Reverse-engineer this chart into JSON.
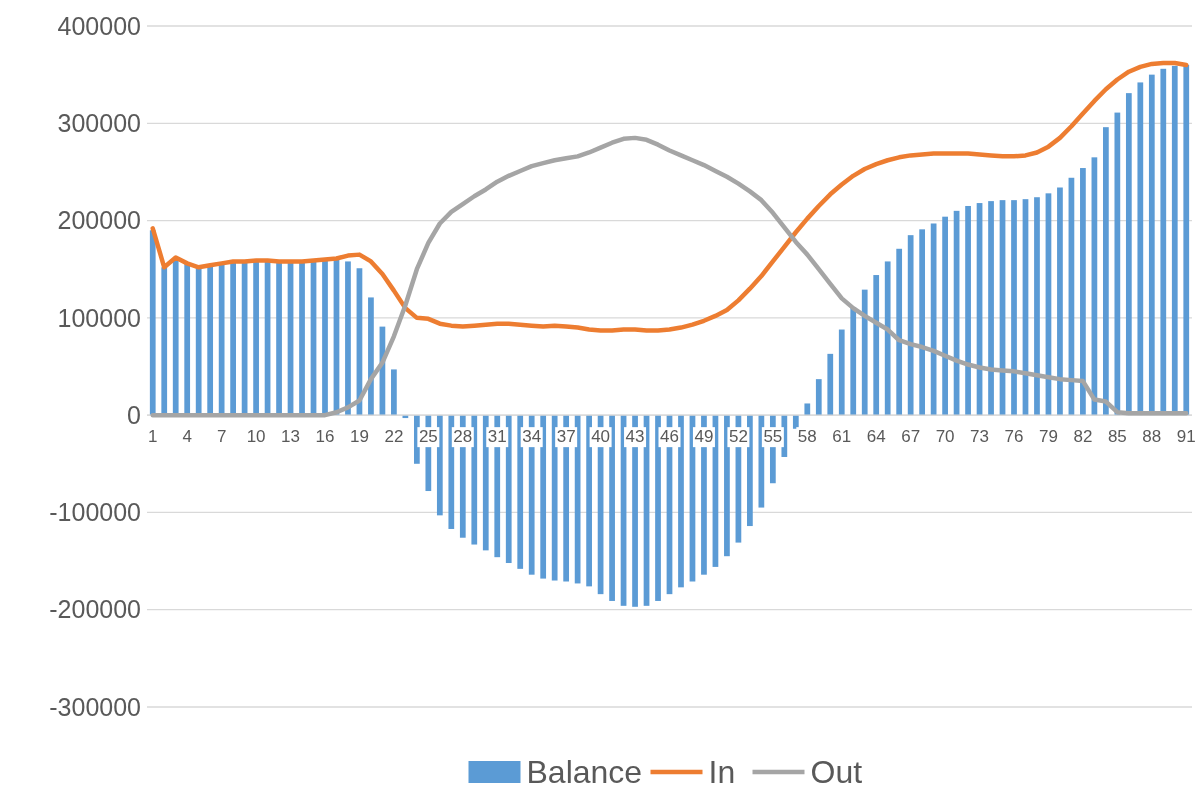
{
  "chart_data": {
    "type": "bar",
    "categories": [
      "1",
      null,
      null,
      "4",
      null,
      null,
      "7",
      null,
      null,
      "10",
      null,
      null,
      "13",
      null,
      null,
      "16",
      null,
      null,
      "19",
      null,
      null,
      "22",
      null,
      null,
      "25",
      null,
      null,
      "28",
      null,
      null,
      "31",
      null,
      null,
      "34",
      null,
      null,
      "37",
      null,
      null,
      "40",
      null,
      null,
      "43",
      null,
      null,
      "46",
      null,
      null,
      "49",
      null,
      null,
      "52",
      null,
      null,
      "55",
      null,
      null,
      "58",
      null,
      null,
      "61",
      null,
      null,
      "64",
      null,
      null,
      "67",
      null,
      null,
      "70",
      null,
      null,
      "73",
      null,
      null,
      "76",
      null,
      null,
      "79",
      null,
      null,
      "82",
      null,
      null,
      "85",
      null,
      null,
      "88",
      null,
      null,
      "91"
    ],
    "series": [
      {
        "name": "Balance",
        "color": "#5b9bd5",
        "values": [
          190000,
          152000,
          160000,
          156000,
          152000,
          154000,
          156000,
          158000,
          158000,
          158000,
          158000,
          158000,
          158000,
          158000,
          158000,
          160000,
          160000,
          158000,
          151000,
          121000,
          91000,
          47000,
          -3000,
          -50000,
          -78000,
          -103000,
          -117000,
          -126000,
          -133000,
          -139000,
          -146000,
          -152000,
          -158000,
          -164000,
          -168000,
          -170000,
          -171000,
          -173000,
          -176000,
          -184000,
          -191000,
          -196000,
          -197000,
          -196000,
          -191000,
          -184000,
          -177000,
          -171000,
          -164000,
          -156000,
          -145000,
          -131000,
          -114000,
          -95000,
          -70000,
          -43000,
          -14000,
          12000,
          37000,
          63000,
          88000,
          111000,
          129000,
          144000,
          158000,
          171000,
          185000,
          191000,
          197000,
          204000,
          210000,
          215000,
          218000,
          220000,
          221000,
          221000,
          222000,
          224000,
          228000,
          234000,
          244000,
          254000,
          265000,
          296000,
          311000,
          331000,
          342000,
          350000,
          356000,
          359000,
          360000
        ]
      },
      {
        "name": "In",
        "type": "line",
        "color": "#ed7d31",
        "values": [
          192000,
          152000,
          162000,
          156000,
          152000,
          154000,
          156000,
          158000,
          158000,
          159000,
          159000,
          158000,
          158000,
          158000,
          159000,
          160000,
          161000,
          164000,
          165000,
          158000,
          145000,
          128000,
          110000,
          100000,
          99000,
          94000,
          92000,
          91000,
          92000,
          93000,
          94000,
          94000,
          93000,
          92000,
          91000,
          92000,
          91000,
          90000,
          88000,
          87000,
          87000,
          88000,
          88000,
          87000,
          87000,
          88000,
          90000,
          93000,
          97000,
          102000,
          108000,
          118000,
          130000,
          143000,
          158000,
          173000,
          188000,
          202000,
          215000,
          227000,
          237000,
          246000,
          253000,
          258000,
          262000,
          265000,
          267000,
          268000,
          269000,
          269000,
          269000,
          269000,
          268000,
          267000,
          266000,
          266000,
          267000,
          270000,
          276000,
          285000,
          297000,
          310000,
          323000,
          335000,
          345000,
          353000,
          358000,
          361000,
          362000,
          362000,
          360000
        ]
      },
      {
        "name": "Out",
        "type": "line",
        "color": "#a5a5a5",
        "values": [
          0,
          0,
          0,
          0,
          0,
          0,
          0,
          0,
          0,
          0,
          0,
          0,
          0,
          0,
          0,
          0,
          3000,
          8000,
          15000,
          37000,
          54000,
          81000,
          113000,
          150000,
          177000,
          197000,
          209000,
          217000,
          225000,
          232000,
          240000,
          246000,
          251000,
          256000,
          259000,
          262000,
          264000,
          266000,
          270000,
          275000,
          280000,
          284000,
          285000,
          283000,
          278000,
          272000,
          267000,
          262000,
          257000,
          251000,
          245000,
          238000,
          230000,
          221000,
          208000,
          193000,
          178000,
          165000,
          150000,
          135000,
          120000,
          110000,
          102000,
          95000,
          88000,
          77000,
          73000,
          70000,
          66000,
          61000,
          56000,
          52000,
          49000,
          47000,
          46000,
          45000,
          43000,
          41000,
          39000,
          37000,
          36000,
          35000,
          16000,
          14000,
          3000,
          2000,
          2000,
          2000,
          2000,
          2000,
          2000
        ]
      }
    ],
    "ylim": [
      -300000,
      400000
    ],
    "yticks": [
      -300000,
      -200000,
      -100000,
      0,
      100000,
      200000,
      300000,
      400000
    ],
    "grid": "y",
    "legend": "bottom",
    "line_style": "solid",
    "marker": "none"
  }
}
